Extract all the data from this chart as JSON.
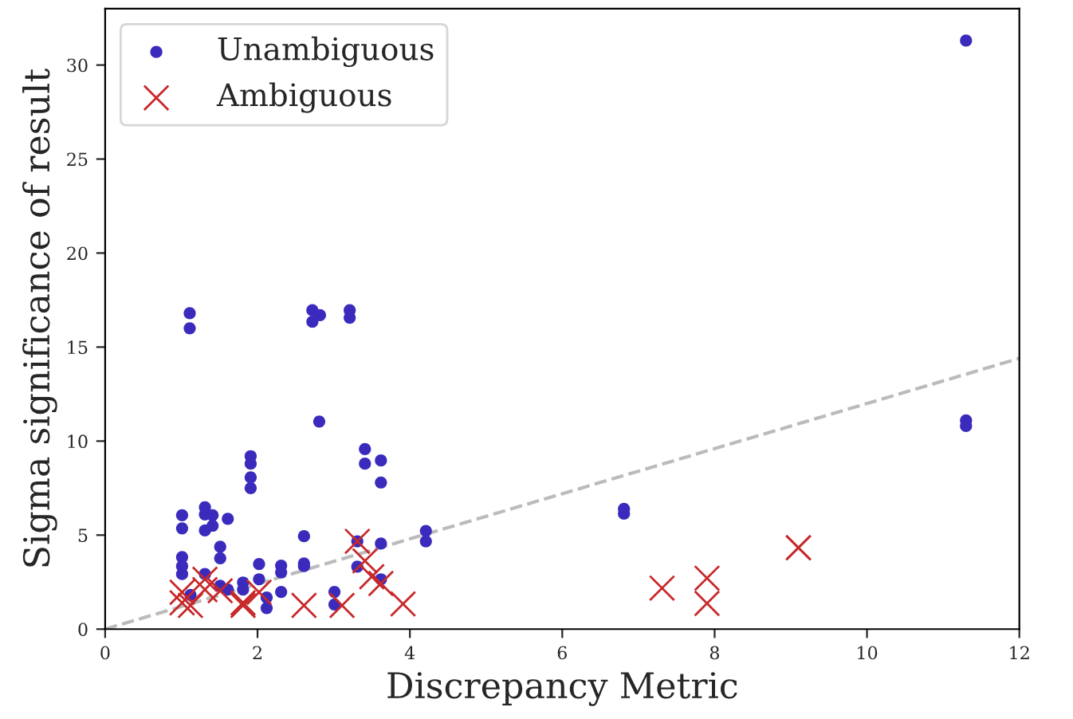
{
  "chart_data": {
    "type": "scatter",
    "xlabel": "Discrepancy Metric",
    "ylabel": "Sigma significance of result",
    "xlim": [
      0,
      12
    ],
    "xticks": [
      0,
      2,
      4,
      6,
      8,
      10,
      12
    ],
    "ylim": [
      0,
      33
    ],
    "yticks": [
      0,
      5,
      10,
      15,
      20,
      25,
      30
    ],
    "grid": false,
    "legend": "top left",
    "series": [
      {
        "name": "Unambiguous",
        "marker": "circle",
        "color": "#3a2bbd",
        "x": [
          1.11,
          1.11,
          2.72,
          2.72,
          2.82,
          3.21,
          3.21,
          2.81,
          1.91,
          1.91,
          1.91,
          1.91,
          3.41,
          3.41,
          3.62,
          3.62,
          1.01,
          1.01,
          1.31,
          1.31,
          1.41,
          1.31,
          1.41,
          1.61,
          1.51,
          1.51,
          1.01,
          1.01,
          1.01,
          1.12,
          1.31,
          1.51,
          1.61,
          1.81,
          1.81,
          2.02,
          2.02,
          2.12,
          2.12,
          2.31,
          2.31,
          2.31,
          2.61,
          2.61,
          2.61,
          3.01,
          3.01,
          3.31,
          3.31,
          3.62,
          3.62,
          4.21,
          4.21,
          6.81,
          6.81,
          11.3,
          11.3,
          11.3
        ],
        "values": [
          16.8,
          16.0,
          16.96,
          16.35,
          16.7,
          16.96,
          16.56,
          11.04,
          9.2,
          8.8,
          8.07,
          7.5,
          9.58,
          8.8,
          8.97,
          7.8,
          6.06,
          5.36,
          6.48,
          6.1,
          6.06,
          5.25,
          5.5,
          5.87,
          4.38,
          3.77,
          3.83,
          3.35,
          2.93,
          1.82,
          2.93,
          2.31,
          2.1,
          2.48,
          2.1,
          3.46,
          2.65,
          1.68,
          1.12,
          3.38,
          3.02,
          1.98,
          4.94,
          3.49,
          3.35,
          1.98,
          1.31,
          4.67,
          3.32,
          4.55,
          2.65,
          5.22,
          4.67,
          6.14,
          6.4,
          31.3,
          11.1,
          10.8
        ]
      },
      {
        "name": "Ambiguous",
        "marker": "cross",
        "color": "#c8282a",
        "x": [
          1.01,
          1.01,
          1.12,
          1.31,
          1.31,
          1.51,
          1.81,
          1.81,
          2.02,
          2.61,
          3.11,
          3.31,
          3.41,
          3.5,
          3.62,
          3.91,
          7.31,
          7.9,
          7.9,
          9.1,
          9.1
        ],
        "values": [
          1.96,
          1.4,
          1.26,
          2.65,
          2.1,
          2.04,
          1.26,
          1.4,
          1.96,
          1.26,
          1.26,
          4.67,
          3.63,
          2.79,
          2.43,
          1.34,
          2.18,
          2.71,
          1.37,
          4.33,
          4.33
        ]
      },
      {
        "type": "line",
        "color": "#bbbbbb",
        "line_style": "dashed",
        "x": [
          0,
          12
        ],
        "values": [
          0,
          14.4
        ]
      }
    ]
  }
}
